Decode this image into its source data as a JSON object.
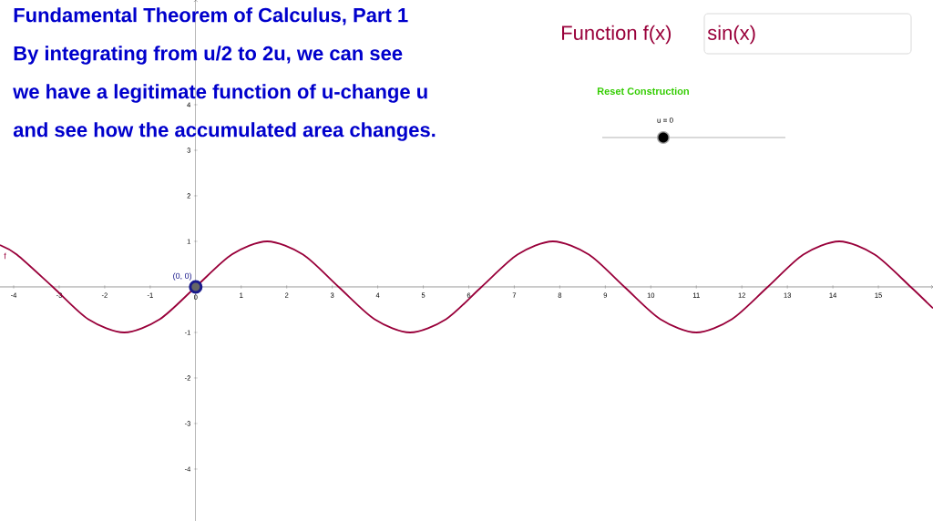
{
  "chart_data": {
    "type": "line",
    "title": "Fundamental Theorem of Calculus, Part 1",
    "annotations": [
      "By integrating from u/2 to 2u, we can see",
      "we have a legitimate function of u-change u",
      "and see how the accumulated area changes.",
      "Function f(x)",
      "sin(x)",
      "Reset Construction",
      "u = 0",
      "f",
      {
        "text": "(0, 0)",
        "x": 0,
        "y": 0
      }
    ],
    "series": [
      {
        "color": "#99003a",
        "marker": "none",
        "x": [
          -4.3,
          -3.93,
          -3.14,
          -2.36,
          -1.57,
          -0.79,
          0,
          0.79,
          1.57,
          2.36,
          3.14,
          3.93,
          4.71,
          5.5,
          6.28,
          7.07,
          7.85,
          8.64,
          9.42,
          10.21,
          11,
          11.78,
          12.57,
          13.35,
          14.14,
          14.92,
          15.71,
          16.2
        ],
        "values": [
          0.92,
          0.71,
          0,
          -0.71,
          -1,
          -0.71,
          0,
          0.71,
          1,
          0.71,
          0,
          -0.71,
          -1,
          -0.71,
          0,
          0.71,
          1,
          0.71,
          0,
          -0.71,
          -1,
          -0.71,
          0,
          0.71,
          1,
          0.71,
          0,
          -0.47
        ]
      },
      {
        "type": "scatter",
        "color": "#1a1a8c",
        "marker": "circle",
        "x": [
          0
        ],
        "values": [
          0
        ]
      }
    ],
    "xlim": [
      -4.3,
      16.2
    ],
    "ylim": [
      -5.14,
      6.3
    ],
    "xticks": [
      -4,
      -3,
      -2,
      -1,
      0,
      1,
      2,
      3,
      4,
      5,
      6,
      7,
      8,
      9,
      10,
      11,
      12,
      13,
      14,
      15
    ],
    "yticks": [
      -4,
      -3,
      -2,
      -1,
      1,
      2,
      3,
      4,
      {
        "value": 5,
        "label": null
      }
    ]
  }
}
